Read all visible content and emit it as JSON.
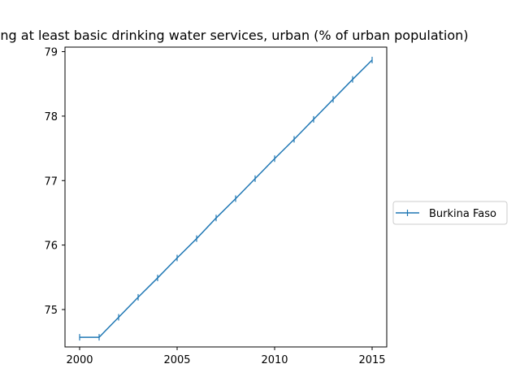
{
  "chart_data": {
    "type": "line",
    "title": "using at least basic drinking water services, urban (% of urban population)",
    "xlabel": "",
    "ylabel": "",
    "x": [
      2000,
      2001,
      2002,
      2003,
      2004,
      2005,
      2006,
      2007,
      2008,
      2009,
      2010,
      2011,
      2012,
      2013,
      2014,
      2015
    ],
    "series": [
      {
        "name": "Burkina Faso",
        "color": "#1f77b4",
        "marker": "vline",
        "values": [
          74.57,
          74.57,
          74.88,
          75.19,
          75.49,
          75.8,
          76.1,
          76.42,
          76.72,
          77.03,
          77.34,
          77.64,
          77.95,
          78.26,
          78.57,
          78.87
        ]
      }
    ],
    "xlim": [
      1999.25,
      2015.75
    ],
    "ylim": [
      74.42,
      79.07
    ],
    "xticks": [
      2000,
      2005,
      2010,
      2015
    ],
    "xtick_labels": [
      "2000",
      "2005",
      "2010",
      "2015"
    ],
    "yticks": [
      75,
      76,
      77,
      78,
      79
    ],
    "ytick_labels": [
      "75",
      "76",
      "77",
      "78",
      "79"
    ],
    "grid": false,
    "legend_position": "outside-right"
  }
}
